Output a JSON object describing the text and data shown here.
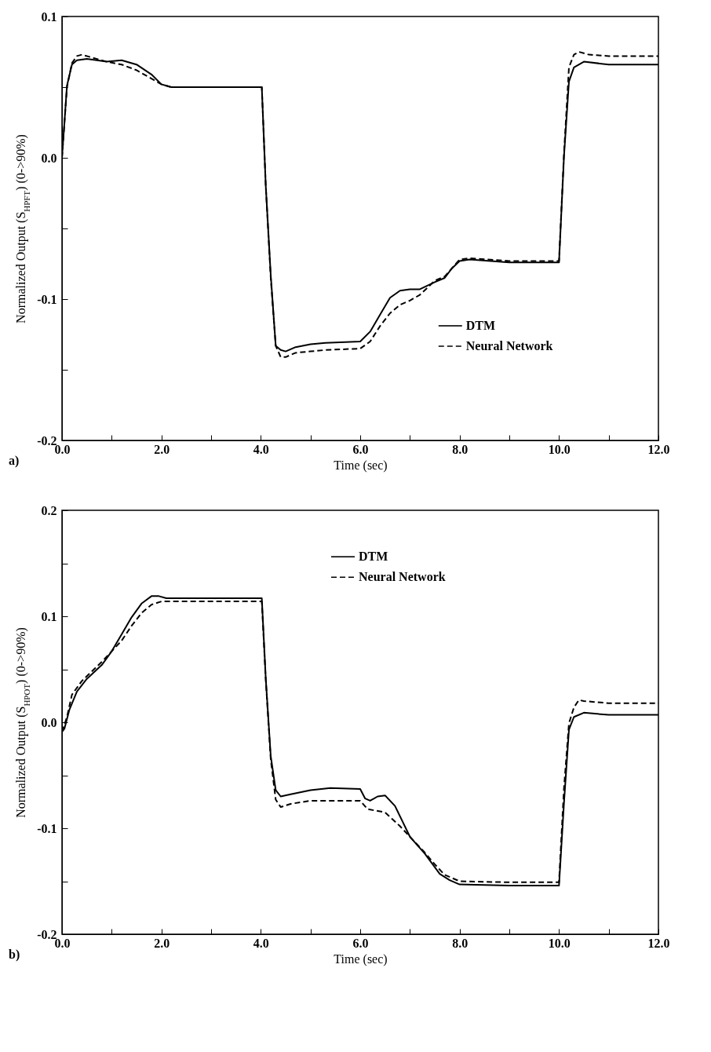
{
  "chart_data": [
    {
      "type": "line",
      "xlabel": "Time (sec)",
      "ylabel": "Normalized Output  (S$_{HPFT}$) (0->90%)",
      "annotations": [
        "a)"
      ],
      "legend": "bottom right",
      "grid": false,
      "xlim": [
        0,
        12
      ],
      "xticks": [
        {
          "value": 0,
          "label": "0.0"
        },
        {
          "value": 1,
          "label": null
        },
        {
          "value": 2,
          "label": "2.0"
        },
        {
          "value": 3,
          "label": null
        },
        {
          "value": 4,
          "label": "4.0"
        },
        {
          "value": 5,
          "label": null
        },
        {
          "value": 6,
          "label": "6.0"
        },
        {
          "value": 7,
          "label": null
        },
        {
          "value": 8,
          "label": "8.0"
        },
        {
          "value": 9,
          "label": null
        },
        {
          "value": 10,
          "label": "10.0"
        },
        {
          "value": 11,
          "label": null
        },
        {
          "value": 12,
          "label": "12.0"
        }
      ],
      "ylim": [
        -0.2,
        0.1
      ],
      "yticks": [
        -0.2,
        {
          "value": -0.15,
          "label": null
        },
        -0.1,
        {
          "value": -0.05,
          "label": null
        },
        {
          "value": 0,
          "label": "0.0"
        },
        {
          "value": 0.05,
          "label": null
        },
        0.1
      ],
      "series": [
        {
          "name": "DTM",
          "color": "#000000",
          "line_style": "solid",
          "x": [
            0,
            0.1,
            0.2,
            0.3,
            0.5,
            0.9,
            1.2,
            1.5,
            1.8,
            2.0,
            2.2,
            4.02,
            4.1,
            4.2,
            4.3,
            4.4,
            4.5,
            4.7,
            5.0,
            5.3,
            6.0,
            6.2,
            6.4,
            6.6,
            6.8,
            7.0,
            7.2,
            7.5,
            7.7,
            7.85,
            8.0,
            8.2,
            9.0,
            10.0,
            10.1,
            10.2,
            10.3,
            10.5,
            11.0,
            12.0
          ],
          "values": [
            0.0,
            0.051,
            0.066,
            0.069,
            0.07,
            0.068,
            0.069,
            0.066,
            0.059,
            0.052,
            0.05,
            0.05,
            -0.02,
            -0.083,
            -0.133,
            -0.136,
            -0.137,
            -0.134,
            -0.132,
            -0.131,
            -0.13,
            -0.123,
            -0.111,
            -0.099,
            -0.094,
            -0.093,
            -0.093,
            -0.088,
            -0.085,
            -0.078,
            -0.073,
            -0.072,
            -0.074,
            -0.074,
            0.001,
            0.054,
            0.064,
            0.068,
            0.066,
            0.066
          ]
        },
        {
          "name": "Neural Network",
          "color": "#000000",
          "line_style": "dashed",
          "x": [
            0,
            0.1,
            0.2,
            0.3,
            0.4,
            0.6,
            0.9,
            1.2,
            1.5,
            1.8,
            2.0,
            2.2,
            4.02,
            4.1,
            4.2,
            4.3,
            4.4,
            4.5,
            4.7,
            5.0,
            5.3,
            6.0,
            6.2,
            6.4,
            6.6,
            6.8,
            7.0,
            7.2,
            7.5,
            7.7,
            7.85,
            8.0,
            8.2,
            9.0,
            10.0,
            10.1,
            10.2,
            10.3,
            10.4,
            10.6,
            11.0,
            12.0
          ],
          "values": [
            0.0,
            0.05,
            0.067,
            0.072,
            0.073,
            0.071,
            0.068,
            0.066,
            0.062,
            0.056,
            0.052,
            0.05,
            0.05,
            -0.02,
            -0.085,
            -0.133,
            -0.141,
            -0.141,
            -0.138,
            -0.137,
            -0.136,
            -0.135,
            -0.13,
            -0.119,
            -0.11,
            -0.104,
            -0.101,
            -0.097,
            -0.087,
            -0.084,
            -0.078,
            -0.072,
            -0.071,
            -0.073,
            -0.073,
            0.003,
            0.064,
            0.073,
            0.075,
            0.073,
            0.072,
            0.072
          ]
        }
      ]
    },
    {
      "type": "line",
      "xlabel": "Time (sec)",
      "ylabel": "Normalized Output (S$_{HPOT}$) (0->90%)",
      "annotations": [
        "b)"
      ],
      "legend": "top",
      "grid": false,
      "xlim": [
        0,
        12
      ],
      "xticks": [
        {
          "value": 0,
          "label": "0.0"
        },
        {
          "value": 1,
          "label": null
        },
        {
          "value": 2,
          "label": "2.0"
        },
        {
          "value": 3,
          "label": null
        },
        {
          "value": 4,
          "label": "4.0"
        },
        {
          "value": 5,
          "label": null
        },
        {
          "value": 6,
          "label": "6.0"
        },
        {
          "value": 7,
          "label": null
        },
        {
          "value": 8,
          "label": "8.0"
        },
        {
          "value": 9,
          "label": null
        },
        {
          "value": 10,
          "label": "10.0"
        },
        {
          "value": 11,
          "label": null
        },
        {
          "value": 12,
          "label": "12.0"
        }
      ],
      "ylim": [
        -0.2,
        0.2
      ],
      "yticks": [
        -0.2,
        {
          "value": -0.15,
          "label": null
        },
        -0.1,
        {
          "value": -0.05,
          "label": null
        },
        {
          "value": 0,
          "label": "0.0"
        },
        {
          "value": 0.05,
          "label": null
        },
        0.1,
        {
          "value": 0.15,
          "label": null
        },
        0.2
      ],
      "series": [
        {
          "name": "DTM",
          "color": "#000000",
          "line_style": "solid",
          "x": [
            0,
            0.05,
            0.15,
            0.3,
            0.5,
            0.8,
            1.0,
            1.2,
            1.4,
            1.6,
            1.8,
            1.95,
            2.1,
            2.4,
            3.0,
            4.02,
            4.1,
            4.2,
            4.3,
            4.4,
            4.6,
            5.0,
            5.4,
            6.0,
            6.1,
            6.2,
            6.35,
            6.5,
            6.7,
            7.0,
            7.3,
            7.6,
            7.8,
            8.0,
            9.0,
            10.0,
            10.1,
            10.2,
            10.3,
            10.5,
            11.0,
            12.0
          ],
          "values": [
            -0.009,
            -0.006,
            0.012,
            0.029,
            0.041,
            0.054,
            0.067,
            0.083,
            0.099,
            0.112,
            0.119,
            0.119,
            0.117,
            0.117,
            0.117,
            0.117,
            0.041,
            -0.032,
            -0.064,
            -0.07,
            -0.068,
            -0.064,
            -0.062,
            -0.063,
            -0.072,
            -0.074,
            -0.07,
            -0.069,
            -0.079,
            -0.108,
            -0.124,
            -0.143,
            -0.149,
            -0.153,
            -0.154,
            -0.154,
            -0.076,
            -0.007,
            0.005,
            0.009,
            0.007,
            0.007
          ]
        },
        {
          "name": "Neural Network",
          "color": "#000000",
          "line_style": "dashed",
          "x": [
            0,
            0.1,
            0.2,
            0.4,
            0.6,
            0.8,
            1.0,
            1.2,
            1.4,
            1.6,
            1.8,
            2.0,
            3.0,
            4.02,
            4.1,
            4.2,
            4.3,
            4.4,
            4.6,
            5.0,
            5.4,
            6.0,
            6.15,
            6.5,
            6.8,
            7.0,
            7.3,
            7.5,
            7.7,
            8.0,
            9.0,
            10.0,
            10.1,
            10.2,
            10.3,
            10.4,
            10.5,
            11.0,
            12.0
          ],
          "values": [
            -0.009,
            0.005,
            0.026,
            0.039,
            0.048,
            0.057,
            0.067,
            0.077,
            0.091,
            0.103,
            0.111,
            0.114,
            0.114,
            0.114,
            0.04,
            -0.035,
            -0.073,
            -0.08,
            -0.077,
            -0.074,
            -0.074,
            -0.074,
            -0.082,
            -0.085,
            -0.098,
            -0.108,
            -0.123,
            -0.134,
            -0.144,
            -0.15,
            -0.151,
            -0.151,
            -0.062,
            -0.001,
            0.014,
            0.021,
            0.02,
            0.018,
            0.018
          ]
        }
      ]
    }
  ]
}
